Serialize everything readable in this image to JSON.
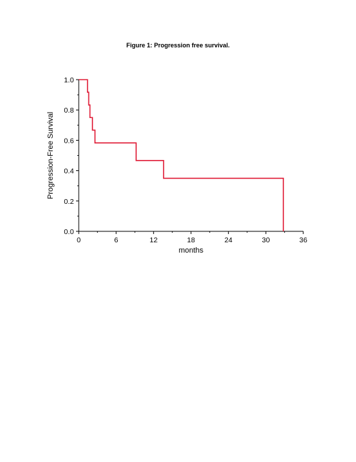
{
  "figure": {
    "title": "Figure 1: Progression free survival."
  },
  "chart_data": {
    "type": "line",
    "title": "Figure 1: Progression free survival.",
    "xlabel": "months",
    "ylabel": "Progression-Free Survival",
    "xlim": [
      0,
      36
    ],
    "ylim": [
      0,
      1
    ],
    "xticks": [
      "0",
      "6",
      "12",
      "18",
      "24",
      "30",
      "36"
    ],
    "yticks": [
      "0.0",
      "0.2",
      "0.4",
      "0.6",
      "0.8",
      "1.0"
    ],
    "grid": false,
    "step": true,
    "color": "#e0203a",
    "series": [
      {
        "x": [
          0,
          1.4,
          1.4,
          1.6,
          1.6,
          1.8,
          1.8,
          2.2,
          2.2,
          2.6,
          2.6,
          9.2,
          9.2,
          13.6,
          13.6,
          32.8,
          32.8
        ],
        "y": [
          1.0,
          1.0,
          0.917,
          0.917,
          0.833,
          0.833,
          0.75,
          0.75,
          0.667,
          0.667,
          0.583,
          0.583,
          0.467,
          0.467,
          0.35,
          0.35,
          0.0
        ]
      }
    ]
  }
}
